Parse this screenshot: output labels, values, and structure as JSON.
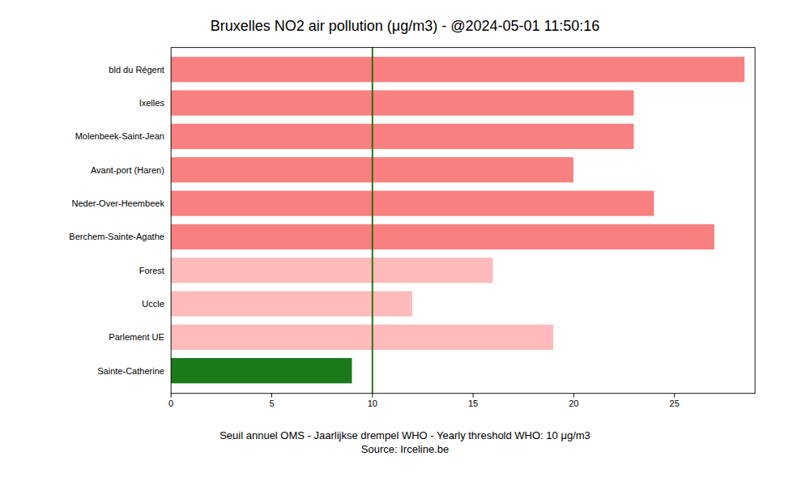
{
  "chart_data": {
    "type": "bar",
    "orientation": "horizontal",
    "title": "Bruxelles NO2 air pollution (μg/m3) - @2024-05-01 11:50:16",
    "xlabel": "Seuil annuel OMS - Jaarlijkse drempel WHO - Yearly threshold WHO: 10 μg/m3\nSource: Irceline.be",
    "categories": [
      "Sainte-Catherine",
      "Parlement UE",
      "Uccle",
      "Forest",
      "Berchem-Sainte-Agathe",
      "Neder-Over-Heembeek",
      "Avant-port (Haren)",
      "Molenbeek-Saint-Jean",
      "Ixelles",
      "bld du Régent"
    ],
    "values": [
      9.0,
      19.0,
      12.0,
      16.0,
      27.0,
      24.0,
      20.0,
      23.0,
      23.0,
      28.5
    ],
    "colors": [
      "#1a7a1a",
      "#ffbbbb",
      "#ffbbbb",
      "#ffbbbb",
      "#f98080",
      "#f98080",
      "#f98080",
      "#f98080",
      "#f98080",
      "#f98080"
    ],
    "reference_line": {
      "value": 10,
      "color": "#1f6b0a"
    },
    "xlim": [
      0,
      29
    ],
    "xticks": [
      0,
      5,
      10,
      15,
      20,
      25
    ],
    "grid": false
  }
}
